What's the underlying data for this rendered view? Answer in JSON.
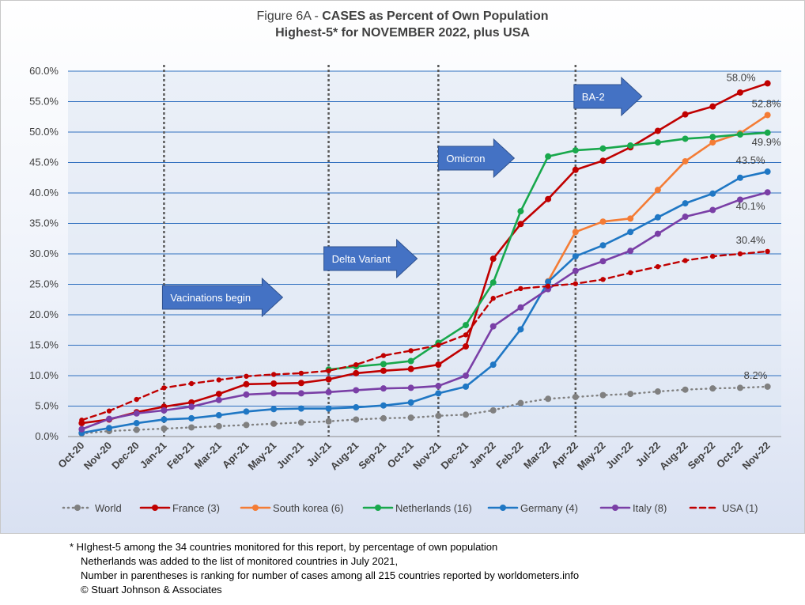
{
  "title": {
    "prefix": "Figure 6A - ",
    "main": "CASES as Percent of Own Population",
    "line2": "Highest-5* for NOVEMBER 2022, plus USA"
  },
  "footnotes": [
    "* HIghest-5 among the 34 countries monitored for this report, by percentage of own population",
    "Netherlands was added to the list of monitored countries in July 2021,",
    "Number in parentheses is ranking for number of cases among all 215 countries reported by worldometers.info",
    "© Stuart Johnson & Associates"
  ],
  "chart_data": {
    "type": "line",
    "categories": [
      "Oct-20",
      "Nov-20",
      "Dec-20",
      "Jan-21",
      "Feb-21",
      "Mar-21",
      "Apr-21",
      "May-21",
      "Jun-21",
      "Jul-21",
      "Aug-21",
      "Sep-21",
      "Oct-21",
      "Nov-21",
      "Dec-21",
      "Jan-22",
      "Feb-22",
      "Mar-22",
      "Apr-22",
      "May-22",
      "Jun-22",
      "Jul-22",
      "Aug-22",
      "Sep-22",
      "Oct-22",
      "Nov-22"
    ],
    "ylim": [
      0,
      60
    ],
    "yticks": [
      0,
      5,
      10,
      15,
      20,
      25,
      30,
      35,
      40,
      45,
      50,
      55,
      60
    ],
    "ytick_labels": [
      "0.0%",
      "5.0%",
      "10.0%",
      "15.0%",
      "20.0%",
      "25.0%",
      "30.0%",
      "35.0%",
      "40.0%",
      "45.0%",
      "50.0%",
      "55.0%",
      "60.0%"
    ],
    "grid": true,
    "legend_position": "bottom",
    "series": [
      {
        "name": "World",
        "color": "#808080",
        "style": "dotted",
        "values": [
          0.5,
          0.9,
          1.1,
          1.3,
          1.5,
          1.7,
          1.9,
          2.1,
          2.3,
          2.5,
          2.8,
          3.0,
          3.1,
          3.4,
          3.6,
          4.3,
          5.5,
          6.2,
          6.5,
          6.8,
          7.0,
          7.4,
          7.7,
          7.9,
          8.0,
          8.2
        ]
      },
      {
        "name": "France (3)",
        "color": "#c00000",
        "style": "solid",
        "values": [
          2.2,
          2.8,
          4.0,
          4.9,
          5.6,
          7.0,
          8.6,
          8.7,
          8.8,
          9.4,
          10.4,
          10.8,
          11.1,
          11.8,
          14.8,
          29.2,
          34.9,
          39.0,
          43.8,
          45.3,
          47.5,
          50.2,
          52.9,
          54.2,
          56.5,
          58.0
        ]
      },
      {
        "name": "South korea (6)",
        "color": "#f47c35",
        "style": "solid",
        "start": 17,
        "values": [
          null,
          null,
          null,
          null,
          null,
          null,
          null,
          null,
          null,
          null,
          null,
          null,
          null,
          null,
          null,
          null,
          null,
          25.5,
          33.6,
          35.3,
          35.8,
          40.5,
          45.2,
          48.3,
          49.8,
          52.8
        ]
      },
      {
        "name": "Netherlands (16)",
        "color": "#18a84c",
        "style": "solid",
        "start": 9,
        "values": [
          null,
          null,
          null,
          null,
          null,
          null,
          null,
          null,
          null,
          11.0,
          11.5,
          11.9,
          12.4,
          15.4,
          18.3,
          25.3,
          37.0,
          46.0,
          47.0,
          47.3,
          47.8,
          48.3,
          48.9,
          49.2,
          49.6,
          49.9
        ]
      },
      {
        "name": "Germany (4)",
        "color": "#1f77c4",
        "style": "solid",
        "values": [
          0.6,
          1.4,
          2.2,
          2.8,
          3.0,
          3.5,
          4.1,
          4.5,
          4.6,
          4.6,
          4.8,
          5.1,
          5.6,
          7.1,
          8.2,
          11.8,
          17.6,
          25.4,
          29.6,
          31.4,
          33.6,
          36.0,
          38.3,
          39.9,
          42.5,
          43.5
        ]
      },
      {
        "name": "Italy (8)",
        "color": "#7a3fa6",
        "style": "solid",
        "values": [
          1.2,
          2.9,
          3.8,
          4.3,
          4.9,
          6.0,
          6.9,
          7.1,
          7.1,
          7.3,
          7.6,
          7.9,
          8.0,
          8.3,
          10.0,
          18.1,
          21.2,
          24.2,
          27.2,
          28.8,
          30.5,
          33.3,
          36.1,
          37.2,
          38.9,
          40.1
        ]
      },
      {
        "name": "USA (1)",
        "color": "#c00000",
        "style": "dashed",
        "values": [
          2.7,
          4.2,
          6.1,
          8.0,
          8.7,
          9.3,
          9.9,
          10.2,
          10.4,
          10.8,
          11.8,
          13.3,
          14.1,
          15.0,
          16.7,
          22.7,
          24.3,
          24.7,
          25.1,
          25.8,
          26.9,
          27.9,
          28.9,
          29.6,
          30.0,
          30.4
        ]
      }
    ],
    "end_labels": [
      {
        "series": "France (3)",
        "text": "58.0%"
      },
      {
        "series": "South korea (6)",
        "text": "52.8%"
      },
      {
        "series": "Netherlands (16)",
        "text": "49.9%"
      },
      {
        "series": "Germany (4)",
        "text": "43.5%"
      },
      {
        "series": "Italy (8)",
        "text": "40.1%"
      },
      {
        "series": "USA (1)",
        "text": "30.4%"
      },
      {
        "series": "World",
        "text": "8.2%"
      }
    ],
    "event_lines": [
      {
        "category": "Jan-21"
      },
      {
        "category": "Jul-21"
      },
      {
        "category": "Nov-21"
      },
      {
        "category": "Apr-22"
      }
    ],
    "annotations": [
      {
        "text": "Vacinations begin",
        "category": "Jan-21"
      },
      {
        "text": "Delta Variant",
        "category": "Jul-21"
      },
      {
        "text": "Omicron",
        "category": "Nov-21"
      },
      {
        "text": "BA-2",
        "category": "Apr-22"
      }
    ]
  }
}
